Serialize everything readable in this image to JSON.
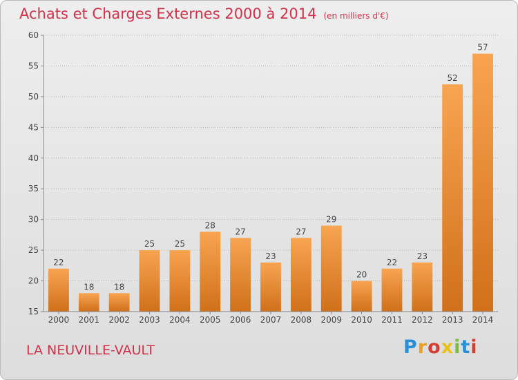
{
  "chart_data": {
    "type": "bar",
    "title": "Achats et Charges Externes 2000 à 2014",
    "subtitle": "(en milliers d'€)",
    "xlabel": "",
    "ylabel": "",
    "categories": [
      "2000",
      "2001",
      "2002",
      "2003",
      "2004",
      "2005",
      "2006",
      "2007",
      "2008",
      "2009",
      "2010",
      "2011",
      "2012",
      "2013",
      "2014"
    ],
    "values": [
      22,
      18,
      18,
      25,
      25,
      28,
      27,
      23,
      27,
      29,
      20,
      22,
      23,
      52,
      57
    ],
    "ylim": [
      15,
      60
    ],
    "yticks": [
      15,
      20,
      25,
      30,
      35,
      40,
      45,
      50,
      55,
      60
    ],
    "grid": "horizontal dotted",
    "bar_color": "#f28a2e"
  },
  "footer": {
    "commune": "LA NEUVILLE-VAULT",
    "logo_letters": [
      "P",
      "r",
      "o",
      "x",
      "i",
      "t",
      "i"
    ],
    "logo_colors": [
      "#2b8fd6",
      "#f0a020",
      "#d43d32",
      "#e8c21a",
      "#7bbf3a",
      "#2b8fd6",
      "#d43d32"
    ]
  }
}
